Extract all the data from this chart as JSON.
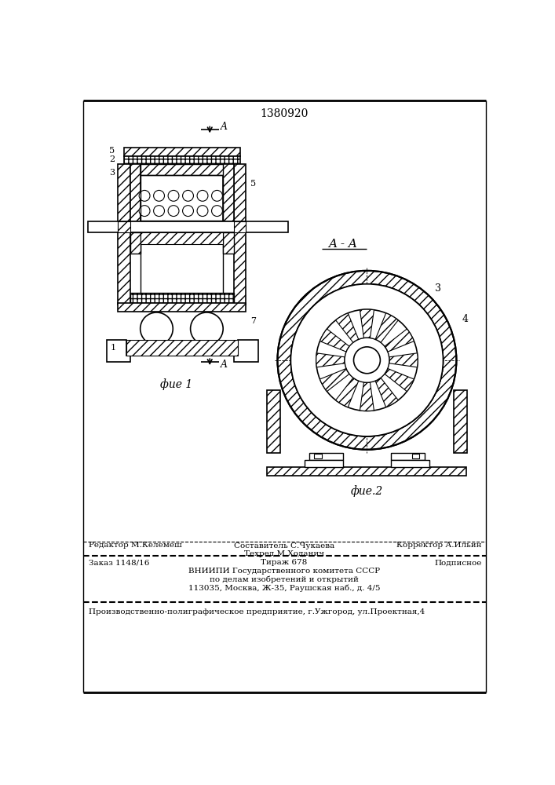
{
  "patent_number": "1380920",
  "bg_color": "#ffffff",
  "fig1_label": "фие 1",
  "fig2_label": "фие.2",
  "section_label": "A - A",
  "footer_line1_left": "Редактор М.Келемеш",
  "footer_line1_center_top": "Составитель С.Чукаева",
  "footer_line1_center_bot": "Техред М.Ходанич",
  "footer_line1_right": "Корректор А.Ильин",
  "footer_line2_left": "Заказ 1148/16",
  "footer_line2_center": "Тираж 678",
  "footer_line2_right": "Подписное",
  "footer_line3": "ВНИИПИ Государственного комитета СССР",
  "footer_line4": "по делам изобретений и открытий",
  "footer_line5": "113035, Москва, Ж-35, Раушская наб., д. 4/5",
  "footer_line6": "Производственно-полиграфическое предприятие, г.Ужгород, ул.Проектная,4"
}
